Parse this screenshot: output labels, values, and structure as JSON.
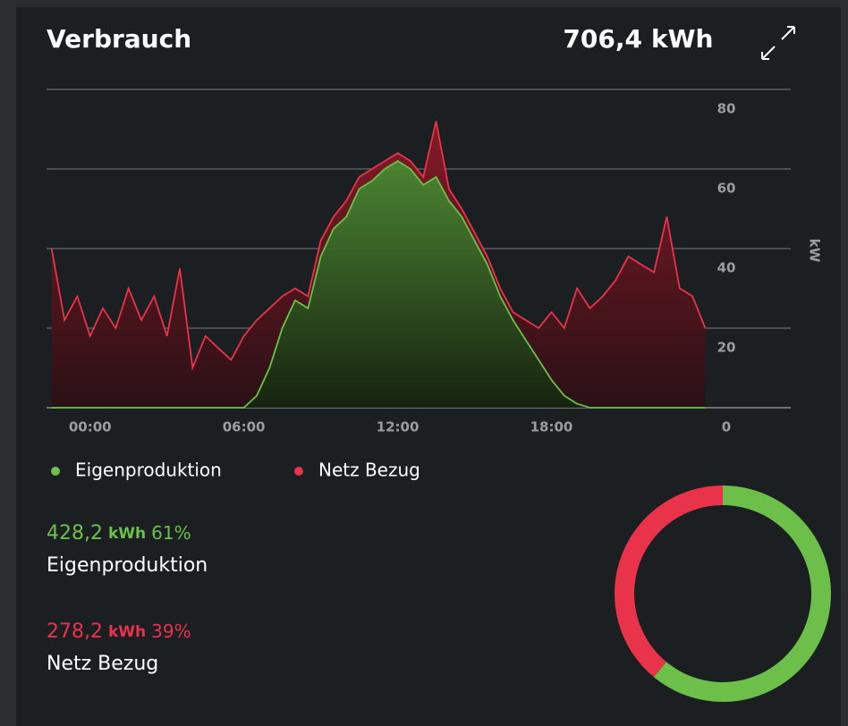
{
  "header": {
    "title": "Verbrauch",
    "total": {
      "value": "706,4",
      "unit": "kWh"
    }
  },
  "chart_data": [
    {
      "type": "area",
      "stacked": true,
      "axis_label": "kW",
      "x": [
        -1.5,
        -1,
        -0.5,
        0,
        0.5,
        1,
        1.5,
        2,
        2.5,
        3,
        3.5,
        4,
        4.5,
        5,
        5.5,
        6,
        6.5,
        7,
        7.5,
        8,
        8.5,
        9,
        9.5,
        10,
        10.5,
        11,
        11.5,
        12,
        12.5,
        13,
        13.5,
        14,
        14.5,
        15,
        15.5,
        16,
        16.5,
        17,
        17.5,
        18,
        18.5,
        19,
        19.5,
        20,
        20.5,
        21,
        21.5,
        22,
        22.5,
        23,
        23.5,
        24
      ],
      "xlim": [
        -1.7,
        24.3
      ],
      "xticks": [
        {
          "value": 0,
          "label": "00:00"
        },
        {
          "value": 6,
          "label": "06:00"
        },
        {
          "value": 12,
          "label": "12:00"
        },
        {
          "value": 18,
          "label": "18:00"
        }
      ],
      "ylim": [
        0,
        80
      ],
      "yticks": [
        0,
        20,
        40,
        60,
        80
      ],
      "grid": true,
      "series": [
        {
          "name": "Eigenproduktion",
          "color": "#6cc04a",
          "values": [
            0,
            0,
            0,
            0,
            0,
            0,
            0,
            0,
            0,
            0,
            0,
            0,
            0,
            0,
            0,
            0,
            3,
            10,
            20,
            27,
            25,
            38,
            45,
            48,
            55,
            57,
            60,
            62,
            60,
            56,
            58,
            52,
            48,
            42,
            36,
            28,
            22,
            17,
            12,
            7,
            3,
            1,
            0,
            0,
            0,
            0,
            0,
            0,
            0,
            0,
            0,
            0
          ]
        },
        {
          "name": "Netz Bezug",
          "color": "#e8334a",
          "values": [
            40,
            22,
            28,
            18,
            25,
            20,
            30,
            22,
            28,
            18,
            35,
            10,
            18,
            15,
            12,
            18,
            19,
            15,
            8,
            3,
            3,
            4,
            3,
            4,
            3,
            3,
            2,
            2,
            2,
            2,
            14,
            3,
            2,
            2,
            2,
            2,
            2,
            5,
            8,
            17,
            17,
            29,
            25,
            28,
            32,
            38,
            36,
            34,
            48,
            30,
            28,
            20
          ]
        }
      ]
    },
    {
      "type": "pie",
      "donut": true,
      "categories": [
        "Eigenproduktion",
        "Netz Bezug"
      ],
      "values": [
        61,
        39
      ],
      "colors": [
        "#6cc04a",
        "#e8334a"
      ]
    }
  ],
  "stats": [
    {
      "value": "428,2",
      "unit": "kWh",
      "percent": "61%",
      "label": "Eigenproduktion"
    },
    {
      "value": "278,2",
      "unit": "kWh",
      "percent": "39%",
      "label": "Netz Bezug"
    }
  ]
}
